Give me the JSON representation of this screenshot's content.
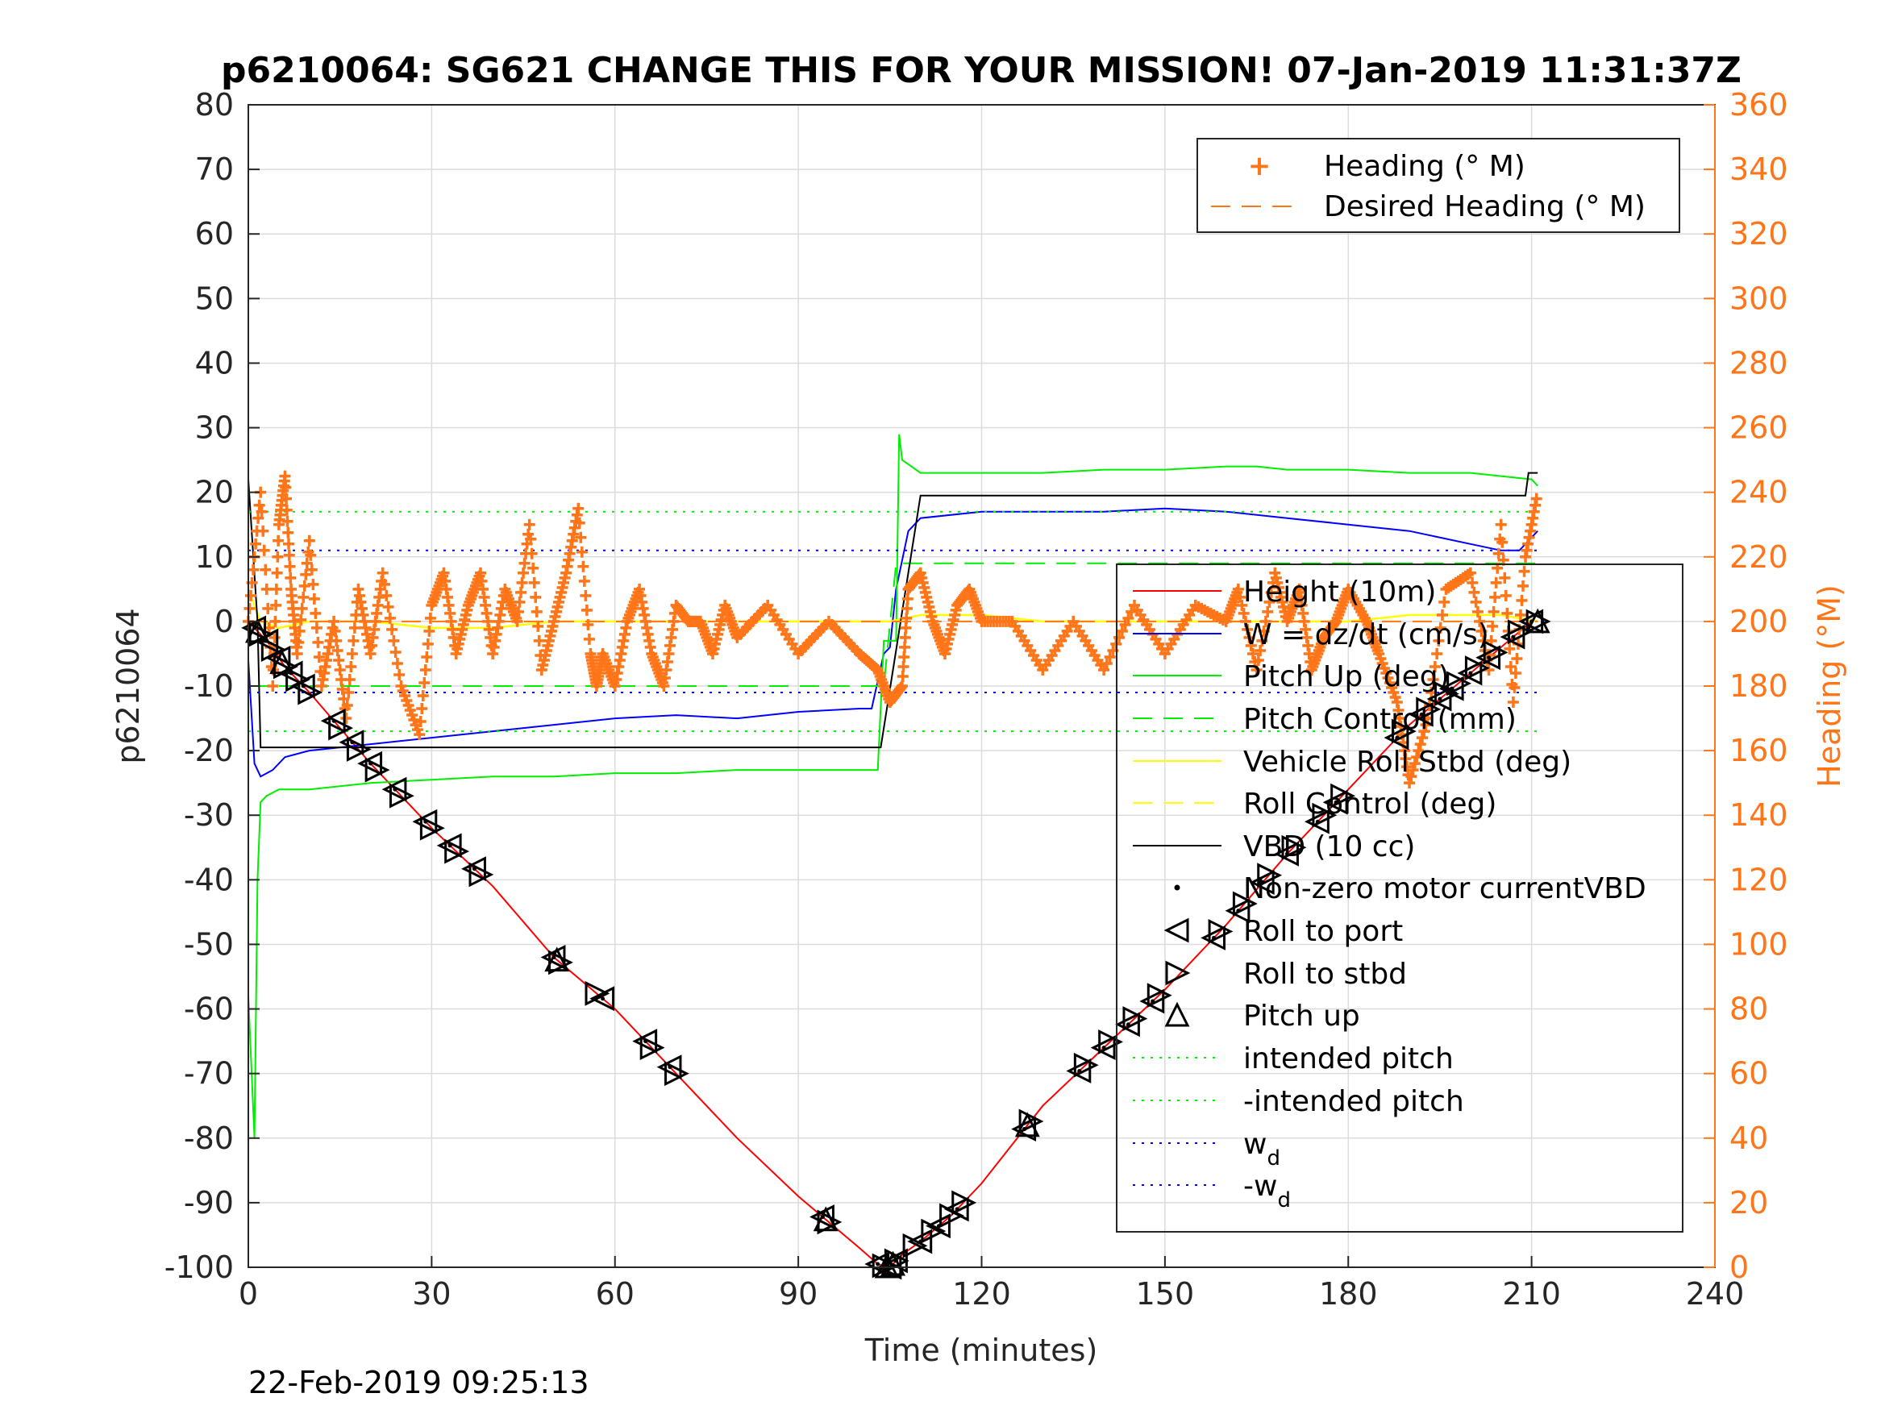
{
  "chart_data": {
    "type": "line",
    "title": "p6210064: SG621 CHANGE THIS FOR YOUR MISSION! 07-Jan-2019 11:31:37Z",
    "xlabel": "Time (minutes)",
    "ylabel_left": "p6210064",
    "ylabel_right": "Heading (°M)",
    "footer_date": "22-Feb-2019 09:25:13",
    "xlim": [
      0,
      240
    ],
    "ylim_left": [
      -100,
      80
    ],
    "ylim_right": [
      0,
      360
    ],
    "xticks": [
      0,
      30,
      60,
      90,
      120,
      150,
      180,
      210,
      240
    ],
    "yticks_left": [
      80,
      70,
      60,
      50,
      40,
      30,
      20,
      10,
      0,
      -10,
      -20,
      -30,
      -40,
      -50,
      -60,
      -70,
      -80,
      -90,
      -100
    ],
    "yticks_right": [
      360,
      340,
      320,
      300,
      280,
      260,
      240,
      220,
      200,
      180,
      160,
      140,
      120,
      100,
      80,
      60,
      40,
      20,
      0
    ],
    "grid": true,
    "colors": {
      "heading": "#ff7518",
      "height": "#ff0000",
      "w": "#0000ff",
      "pitch": "#00ee00",
      "roll": "#ffff00",
      "vbd": "#000000",
      "axis_right": "#ff7518"
    },
    "legend_heading": {
      "placement": "top-right",
      "entries": [
        "Heading (° M)",
        "Desired Heading (° M)"
      ]
    },
    "legend_main": {
      "placement": "right",
      "entries": [
        "Height (10m)",
        "W = dz/dt (cm/s)",
        "Pitch Up (deg)",
        "Pitch Control (mm)",
        "Vehicle Roll Stbd (deg)",
        "Roll Control (deg)",
        "VBD (10 cc)",
        "Non-zero motor currentVBD",
        "Roll to port",
        "Roll to stbd",
        "Pitch up",
        "intended pitch",
        "-intended pitch",
        "w",
        "-w"
      ],
      "subscript": "d"
    },
    "series": [
      {
        "name": "Height (10m)",
        "axis": "left",
        "x": [
          0,
          1,
          3,
          6,
          10,
          20,
          30,
          40,
          50,
          60,
          70,
          80,
          90,
          100,
          103,
          105,
          107,
          110,
          115,
          120,
          130,
          140,
          150,
          160,
          170,
          180,
          190,
          200,
          205,
          210
        ],
        "y": [
          0,
          -1,
          -3,
          -7,
          -11,
          -22,
          -32,
          -41,
          -52,
          -60,
          -70,
          -80,
          -89,
          -97,
          -99.5,
          -100,
          -98,
          -96,
          -92,
          -87,
          -75,
          -66,
          -57,
          -47,
          -36,
          -26,
          -16,
          -8,
          -4,
          0
        ]
      },
      {
        "name": "W = dz/dt (cm/s)",
        "axis": "left",
        "x": [
          0,
          1,
          2,
          4,
          6,
          10,
          20,
          30,
          40,
          50,
          60,
          70,
          80,
          90,
          100,
          102,
          104,
          105,
          106,
          108,
          110,
          120,
          130,
          140,
          150,
          160,
          170,
          180,
          190,
          200,
          205,
          208,
          210,
          211
        ],
        "y": [
          -6,
          -22,
          -24,
          -23,
          -21,
          -20,
          -19,
          -18,
          -17,
          -16,
          -15,
          -14.5,
          -15,
          -14,
          -13.5,
          -13.5,
          -5,
          -4,
          5,
          14,
          16,
          17,
          17,
          17,
          17.5,
          17,
          16,
          15,
          14,
          12,
          11,
          11,
          13,
          14
        ]
      },
      {
        "name": "Pitch Up (deg)",
        "axis": "left",
        "x": [
          0,
          1,
          1.5,
          2,
          3,
          5,
          10,
          20,
          30,
          40,
          50,
          60,
          70,
          80,
          90,
          103,
          104,
          106,
          106.5,
          107,
          110,
          120,
          130,
          140,
          150,
          160,
          165,
          170,
          180,
          190,
          200,
          205,
          210,
          211
        ],
        "y": [
          -58,
          -80,
          -40,
          -28,
          -27,
          -26,
          -26,
          -25,
          -24.5,
          -24,
          -24,
          -23.5,
          -23.5,
          -23,
          -23,
          -23,
          -3,
          -3,
          29,
          25,
          23,
          23,
          23,
          23.5,
          23.5,
          24,
          24,
          23.5,
          23.5,
          23,
          23,
          22.5,
          22,
          21
        ]
      },
      {
        "name": "Pitch Control (mm)",
        "axis": "left",
        "x": [
          0,
          104,
          106,
          211
        ],
        "y": [
          -10,
          -10,
          9,
          9
        ]
      },
      {
        "name": "Vehicle Roll Stbd (deg)",
        "axis": "left",
        "x": [
          0,
          2,
          5,
          10,
          20,
          30,
          40,
          50,
          60,
          70,
          80,
          90,
          100,
          105,
          110,
          120,
          130,
          140,
          150,
          160,
          170,
          180,
          190,
          200,
          205,
          211
        ],
        "y": [
          5,
          0,
          -1,
          0,
          0,
          -1,
          -1,
          0,
          0,
          0,
          0,
          0,
          0,
          0,
          1,
          1,
          0,
          0,
          0,
          0,
          0,
          0,
          1,
          1,
          1,
          0
        ]
      },
      {
        "name": "Roll Control (deg)",
        "axis": "left",
        "x": [
          0,
          211
        ],
        "y": [
          0,
          0
        ]
      },
      {
        "name": "VBD (10 cc)",
        "axis": "left",
        "x": [
          0,
          1.5,
          2,
          103.5,
          110,
          209,
          209.5,
          211
        ],
        "y": [
          22,
          0,
          -19.5,
          -19.5,
          19.5,
          19.5,
          23,
          23
        ]
      },
      {
        "name": "intended pitch",
        "axis": "left",
        "x": [
          0,
          211
        ],
        "y": [
          17,
          17
        ]
      },
      {
        "name": "-intended pitch",
        "axis": "left",
        "x": [
          0,
          211
        ],
        "y": [
          -17,
          -17
        ]
      },
      {
        "name": "w_d",
        "axis": "left",
        "x": [
          0,
          211
        ],
        "y": [
          11,
          11
        ]
      },
      {
        "name": "-w_d",
        "axis": "left",
        "x": [
          0,
          211
        ],
        "y": [
          -11,
          -11
        ]
      },
      {
        "name": "Heading (° M)",
        "axis": "right",
        "x": [
          0,
          2,
          4,
          5,
          6,
          7,
          8,
          10,
          12,
          14,
          16,
          18,
          20,
          22,
          25,
          28,
          30,
          32,
          34,
          36,
          38,
          40,
          42,
          44,
          46,
          48,
          50,
          52,
          54,
          56,
          57,
          58,
          60,
          62,
          64,
          66,
          68,
          70,
          72,
          74,
          76,
          78,
          80,
          85,
          90,
          95,
          100,
          103,
          105,
          107,
          108,
          110,
          112,
          114,
          116,
          118,
          120,
          125,
          130,
          135,
          140,
          145,
          150,
          155,
          160,
          162,
          165,
          168,
          170,
          172,
          174,
          176,
          178,
          180,
          183,
          185,
          188,
          190,
          193,
          196,
          200,
          203,
          205,
          207,
          209,
          211
        ],
        "y": [
          200,
          240,
          180,
          230,
          245,
          210,
          190,
          225,
          180,
          200,
          170,
          210,
          190,
          215,
          180,
          165,
          205,
          215,
          190,
          205,
          215,
          190,
          210,
          200,
          230,
          185,
          200,
          215,
          235,
          190,
          180,
          190,
          180,
          200,
          210,
          190,
          180,
          205,
          200,
          200,
          190,
          205,
          195,
          205,
          190,
          200,
          190,
          185,
          175,
          180,
          210,
          215,
          200,
          190,
          205,
          210,
          200,
          200,
          185,
          200,
          185,
          205,
          190,
          205,
          200,
          210,
          185,
          215,
          200,
          210,
          185,
          195,
          200,
          210,
          200,
          190,
          175,
          150,
          170,
          210,
          215,
          185,
          230,
          175,
          220,
          240
        ]
      },
      {
        "name": "Desired Heading (° M)",
        "axis": "right",
        "x": [
          0,
          211
        ],
        "y": [
          200,
          200
        ]
      }
    ],
    "markers": {
      "roll_to_port_times": [
        1,
        3,
        5,
        7,
        9,
        14,
        17,
        20,
        24,
        29,
        33,
        37,
        50,
        58,
        65,
        69,
        94,
        103,
        105,
        106,
        110,
        113,
        116,
        127,
        136,
        140,
        144,
        148,
        158,
        162,
        166,
        170,
        175,
        178,
        188,
        192,
        195,
        197,
        200,
        203,
        207,
        210
      ],
      "roll_to_stbd_times": [
        2,
        4,
        6,
        8,
        10,
        15,
        18,
        21,
        25,
        30,
        34,
        38,
        51,
        57,
        66,
        70,
        95,
        104,
        106,
        109,
        112,
        115,
        117,
        128,
        137,
        141,
        145,
        149,
        159,
        163,
        167,
        171,
        176,
        179,
        189,
        193,
        196,
        198,
        201,
        204,
        208,
        211
      ],
      "pitch_up_times": [
        1.5,
        5.5,
        50.5,
        94.5,
        104.5,
        105.5,
        127.5,
        211
      ]
    }
  }
}
